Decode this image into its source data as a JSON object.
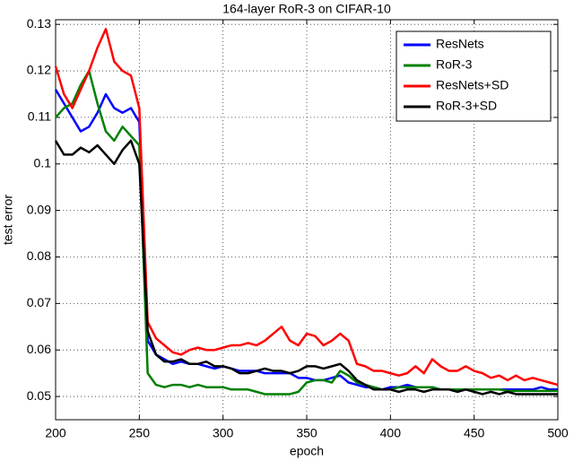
{
  "chart_data": {
    "type": "line",
    "title": "164-layer RoR-3 on CIFAR-10",
    "x_label": "epoch",
    "y_label": "test error",
    "x": [
      200,
      205,
      210,
      215,
      220,
      225,
      230,
      235,
      240,
      245,
      250,
      255,
      260,
      265,
      270,
      275,
      280,
      285,
      290,
      295,
      300,
      305,
      310,
      315,
      320,
      325,
      330,
      335,
      340,
      345,
      350,
      355,
      360,
      365,
      370,
      375,
      380,
      385,
      390,
      395,
      400,
      405,
      410,
      415,
      420,
      425,
      430,
      435,
      440,
      445,
      450,
      455,
      460,
      465,
      470,
      475,
      480,
      485,
      490,
      495,
      500
    ],
    "series": [
      {
        "name": "ResNets",
        "color": "#0000ff",
        "values": [
          0.116,
          0.113,
          0.11,
          0.107,
          0.108,
          0.111,
          0.115,
          0.112,
          0.111,
          0.112,
          0.109,
          0.062,
          0.059,
          0.058,
          0.057,
          0.0575,
          0.057,
          0.057,
          0.0565,
          0.056,
          0.0565,
          0.056,
          0.0555,
          0.0555,
          0.0555,
          0.055,
          0.055,
          0.055,
          0.055,
          0.054,
          0.054,
          0.0535,
          0.0535,
          0.054,
          0.0545,
          0.053,
          0.0525,
          0.052,
          0.052,
          0.0515,
          0.052,
          0.052,
          0.0525,
          0.052,
          0.052,
          0.052,
          0.0515,
          0.0515,
          0.0515,
          0.0515,
          0.0515,
          0.0515,
          0.0515,
          0.0515,
          0.0515,
          0.0515,
          0.0515,
          0.0515,
          0.052,
          0.0515,
          0.0515
        ]
      },
      {
        "name": "RoR-3",
        "color": "#008000",
        "values": [
          0.11,
          0.112,
          0.113,
          0.117,
          0.12,
          0.113,
          0.107,
          0.105,
          0.108,
          0.106,
          0.104,
          0.055,
          0.0525,
          0.052,
          0.0525,
          0.0525,
          0.052,
          0.0525,
          0.052,
          0.052,
          0.052,
          0.0515,
          0.0515,
          0.0515,
          0.051,
          0.0505,
          0.0505,
          0.0505,
          0.0505,
          0.051,
          0.053,
          0.0535,
          0.0535,
          0.053,
          0.0555,
          0.0545,
          0.053,
          0.0525,
          0.052,
          0.0515,
          0.0515,
          0.052,
          0.052,
          0.052,
          0.052,
          0.052,
          0.0515,
          0.0515,
          0.0515,
          0.0515,
          0.0515,
          0.0515,
          0.0515,
          0.0515,
          0.0512,
          0.0512,
          0.0512,
          0.0512,
          0.0512,
          0.0512,
          0.0512
        ]
      },
      {
        "name": "ResNets+SD",
        "color": "#ff0000",
        "values": [
          0.121,
          0.115,
          0.112,
          0.116,
          0.12,
          0.125,
          0.129,
          0.122,
          0.12,
          0.119,
          0.112,
          0.066,
          0.0625,
          0.061,
          0.0595,
          0.059,
          0.06,
          0.0605,
          0.06,
          0.06,
          0.0605,
          0.061,
          0.061,
          0.0615,
          0.061,
          0.062,
          0.0635,
          0.065,
          0.062,
          0.061,
          0.0635,
          0.063,
          0.061,
          0.062,
          0.0635,
          0.062,
          0.057,
          0.0565,
          0.0555,
          0.0555,
          0.055,
          0.0545,
          0.055,
          0.0565,
          0.055,
          0.058,
          0.0565,
          0.0555,
          0.0555,
          0.0565,
          0.0555,
          0.055,
          0.054,
          0.0545,
          0.0535,
          0.0545,
          0.0535,
          0.054,
          0.0535,
          0.053,
          0.0525
        ]
      },
      {
        "name": "RoR-3+SD",
        "color": "#000000",
        "values": [
          0.105,
          0.102,
          0.102,
          0.1035,
          0.1025,
          0.104,
          0.102,
          0.1,
          0.103,
          0.105,
          0.1,
          0.064,
          0.059,
          0.0575,
          0.0575,
          0.058,
          0.057,
          0.057,
          0.0575,
          0.0565,
          0.0565,
          0.056,
          0.055,
          0.055,
          0.0555,
          0.056,
          0.0555,
          0.0555,
          0.055,
          0.0555,
          0.0565,
          0.0565,
          0.056,
          0.0565,
          0.057,
          0.0555,
          0.0535,
          0.0525,
          0.0515,
          0.0515,
          0.0515,
          0.051,
          0.0515,
          0.0515,
          0.051,
          0.0515,
          0.0515,
          0.0515,
          0.051,
          0.0515,
          0.051,
          0.0505,
          0.051,
          0.0505,
          0.051,
          0.0505,
          0.0505,
          0.0505,
          0.0505,
          0.0505,
          0.0505
        ]
      }
    ],
    "xlim": [
      200,
      500
    ],
    "ylim": [
      0.045,
      0.131
    ],
    "xticks": [
      200,
      250,
      300,
      350,
      400,
      450,
      500
    ],
    "yticks": [
      0.05,
      0.06,
      0.07,
      0.08,
      0.09,
      0.1,
      0.11,
      0.12,
      0.13
    ],
    "grid": true,
    "legend": "upper right"
  }
}
